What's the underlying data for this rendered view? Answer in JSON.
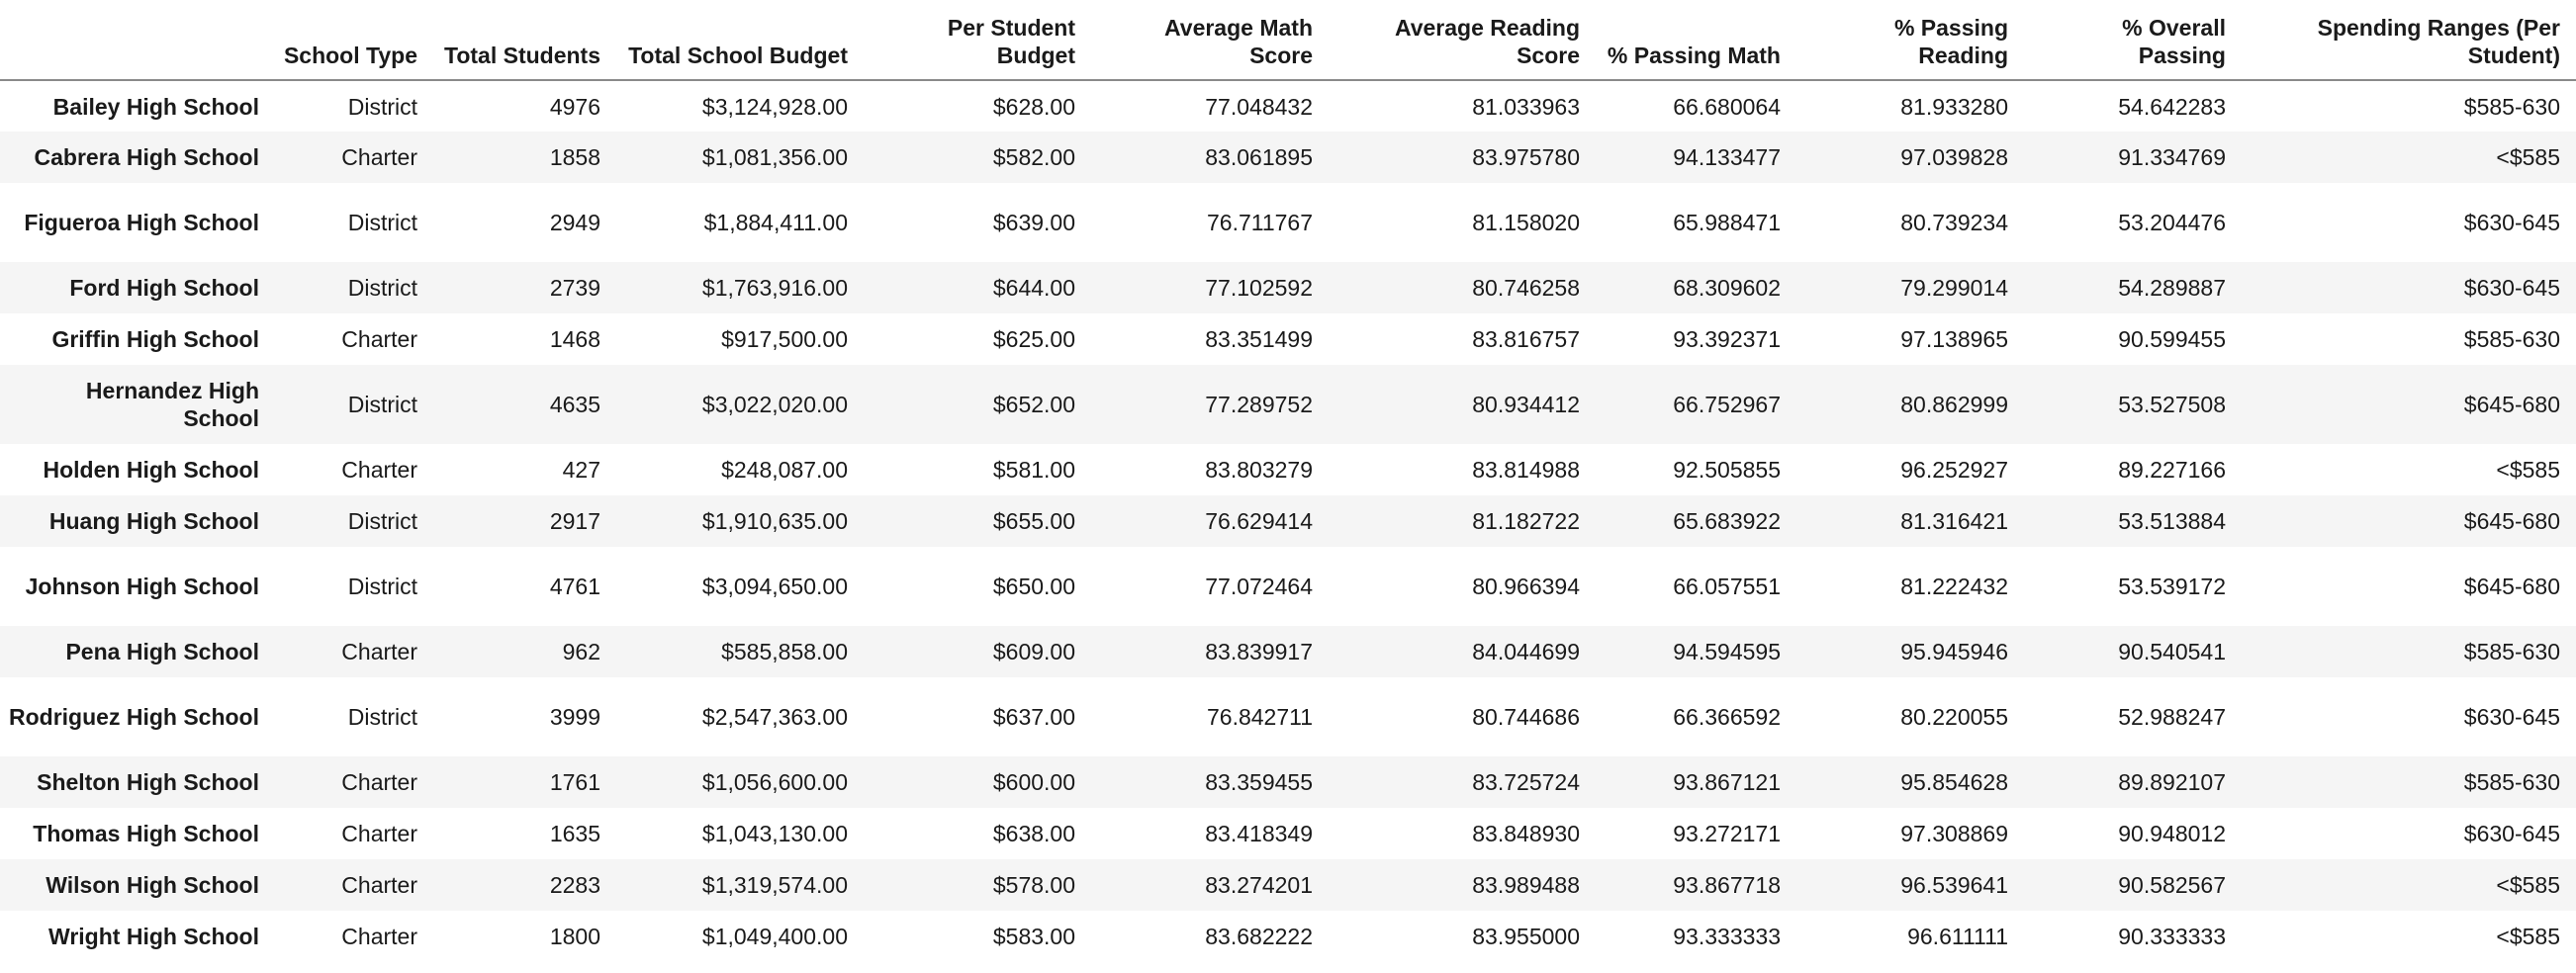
{
  "table": {
    "columns": [
      "",
      "School Type",
      "Total Students",
      "Total School Budget",
      "Per Student Budget",
      "Average Math Score",
      "Average Reading Score",
      "% Passing Math",
      "% Passing Reading",
      "% Overall Passing",
      "Spending Ranges (Per Student)"
    ],
    "rows": [
      {
        "name": "Bailey High School",
        "type": "District",
        "students": "4976",
        "budget": "$3,124,928.00",
        "per_student": "$628.00",
        "math": "77.048432",
        "reading": "81.033963",
        "pass_math": "66.680064",
        "pass_reading": "81.933280",
        "overall": "54.642283",
        "spending": "$585-630"
      },
      {
        "name": "Cabrera High School",
        "type": "Charter",
        "students": "1858",
        "budget": "$1,081,356.00",
        "per_student": "$582.00",
        "math": "83.061895",
        "reading": "83.975780",
        "pass_math": "94.133477",
        "pass_reading": "97.039828",
        "overall": "91.334769",
        "spending": "<$585"
      },
      {
        "name": "Figueroa High School",
        "type": "District",
        "students": "2949",
        "budget": "$1,884,411.00",
        "per_student": "$639.00",
        "math": "76.711767",
        "reading": "81.158020",
        "pass_math": "65.988471",
        "pass_reading": "80.739234",
        "overall": "53.204476",
        "spending": "$630-645"
      },
      {
        "name": "Ford High School",
        "type": "District",
        "students": "2739",
        "budget": "$1,763,916.00",
        "per_student": "$644.00",
        "math": "77.102592",
        "reading": "80.746258",
        "pass_math": "68.309602",
        "pass_reading": "79.299014",
        "overall": "54.289887",
        "spending": "$630-645"
      },
      {
        "name": "Griffin High School",
        "type": "Charter",
        "students": "1468",
        "budget": "$917,500.00",
        "per_student": "$625.00",
        "math": "83.351499",
        "reading": "83.816757",
        "pass_math": "93.392371",
        "pass_reading": "97.138965",
        "overall": "90.599455",
        "spending": "$585-630"
      },
      {
        "name": "Hernandez High School",
        "type": "District",
        "students": "4635",
        "budget": "$3,022,020.00",
        "per_student": "$652.00",
        "math": "77.289752",
        "reading": "80.934412",
        "pass_math": "66.752967",
        "pass_reading": "80.862999",
        "overall": "53.527508",
        "spending": "$645-680"
      },
      {
        "name": "Holden High School",
        "type": "Charter",
        "students": "427",
        "budget": "$248,087.00",
        "per_student": "$581.00",
        "math": "83.803279",
        "reading": "83.814988",
        "pass_math": "92.505855",
        "pass_reading": "96.252927",
        "overall": "89.227166",
        "spending": "<$585"
      },
      {
        "name": "Huang High School",
        "type": "District",
        "students": "2917",
        "budget": "$1,910,635.00",
        "per_student": "$655.00",
        "math": "76.629414",
        "reading": "81.182722",
        "pass_math": "65.683922",
        "pass_reading": "81.316421",
        "overall": "53.513884",
        "spending": "$645-680"
      },
      {
        "name": "Johnson High School",
        "type": "District",
        "students": "4761",
        "budget": "$3,094,650.00",
        "per_student": "$650.00",
        "math": "77.072464",
        "reading": "80.966394",
        "pass_math": "66.057551",
        "pass_reading": "81.222432",
        "overall": "53.539172",
        "spending": "$645-680"
      },
      {
        "name": "Pena High School",
        "type": "Charter",
        "students": "962",
        "budget": "$585,858.00",
        "per_student": "$609.00",
        "math": "83.839917",
        "reading": "84.044699",
        "pass_math": "94.594595",
        "pass_reading": "95.945946",
        "overall": "90.540541",
        "spending": "$585-630"
      },
      {
        "name": "Rodriguez High School",
        "type": "District",
        "students": "3999",
        "budget": "$2,547,363.00",
        "per_student": "$637.00",
        "math": "76.842711",
        "reading": "80.744686",
        "pass_math": "66.366592",
        "pass_reading": "80.220055",
        "overall": "52.988247",
        "spending": "$630-645"
      },
      {
        "name": "Shelton High School",
        "type": "Charter",
        "students": "1761",
        "budget": "$1,056,600.00",
        "per_student": "$600.00",
        "math": "83.359455",
        "reading": "83.725724",
        "pass_math": "93.867121",
        "pass_reading": "95.854628",
        "overall": "89.892107",
        "spending": "$585-630"
      },
      {
        "name": "Thomas High School",
        "type": "Charter",
        "students": "1635",
        "budget": "$1,043,130.00",
        "per_student": "$638.00",
        "math": "83.418349",
        "reading": "83.848930",
        "pass_math": "93.272171",
        "pass_reading": "97.308869",
        "overall": "90.948012",
        "spending": "$630-645"
      },
      {
        "name": "Wilson High School",
        "type": "Charter",
        "students": "2283",
        "budget": "$1,319,574.00",
        "per_student": "$578.00",
        "math": "83.274201",
        "reading": "83.989488",
        "pass_math": "93.867718",
        "pass_reading": "96.539641",
        "overall": "90.582567",
        "spending": "<$585"
      },
      {
        "name": "Wright High School",
        "type": "Charter",
        "students": "1800",
        "budget": "$1,049,400.00",
        "per_student": "$583.00",
        "math": "83.682222",
        "reading": "83.955000",
        "pass_math": "93.333333",
        "pass_reading": "96.611111",
        "overall": "90.333333",
        "spending": "<$585"
      }
    ]
  }
}
